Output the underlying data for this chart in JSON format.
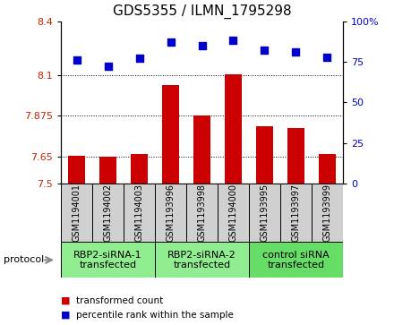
{
  "title": "GDS5355 / ILMN_1795298",
  "samples": [
    "GSM1194001",
    "GSM1194002",
    "GSM1194003",
    "GSM1193996",
    "GSM1193998",
    "GSM1194000",
    "GSM1193995",
    "GSM1193997",
    "GSM1193999"
  ],
  "bar_values": [
    7.655,
    7.648,
    7.663,
    8.045,
    7.875,
    8.103,
    7.818,
    7.808,
    7.663
  ],
  "scatter_values": [
    76,
    72,
    77,
    87,
    85,
    88,
    82,
    81,
    78
  ],
  "ylim_left": [
    7.5,
    8.4
  ],
  "ylim_right": [
    0,
    100
  ],
  "yticks_left": [
    7.5,
    7.65,
    7.875,
    8.1,
    8.4
  ],
  "yticks_right": [
    0,
    25,
    50,
    75,
    100
  ],
  "ytick_labels_left": [
    "7.5",
    "7.65",
    "7.875",
    "8.1",
    "8.4"
  ],
  "ytick_labels_right": [
    "0",
    "25",
    "50",
    "75",
    "100%"
  ],
  "hlines": [
    7.65,
    7.875,
    8.1
  ],
  "bar_color": "#cc0000",
  "scatter_color": "#0000cc",
  "bar_bottom": 7.5,
  "groups": [
    {
      "label": "RBP2-siRNA-1\ntransfected",
      "start": 0,
      "end": 3,
      "color": "#90ee90"
    },
    {
      "label": "RBP2-siRNA-2\ntransfected",
      "start": 3,
      "end": 6,
      "color": "#90ee90"
    },
    {
      "label": "control siRNA\ntransfected",
      "start": 6,
      "end": 9,
      "color": "#66dd66"
    }
  ],
  "protocol_label": "protocol",
  "legend_bar_label": "transformed count",
  "legend_scatter_label": "percentile rank within the sample",
  "sample_box_color": "#d0d0d0",
  "plot_bg": "#ffffff",
  "title_fontsize": 11,
  "tick_fontsize": 8,
  "sample_fontsize": 7,
  "group_fontsize": 8
}
